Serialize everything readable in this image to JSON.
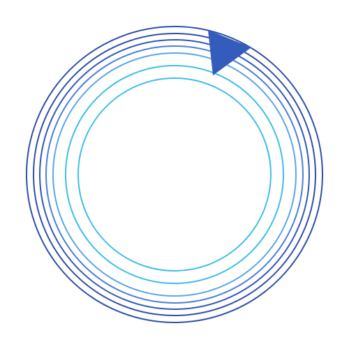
{
  "graphic": {
    "ring_count": 7,
    "ring_colors": [
      "#2f4fa6",
      "#2f4fa6",
      "#3157b8",
      "#4a7fd6",
      "#5aa6e6",
      "#3fbde8",
      "#3fbde8"
    ],
    "pointer_color": "#335cbc",
    "pointer_icon": "triangle-pointer-icon"
  }
}
